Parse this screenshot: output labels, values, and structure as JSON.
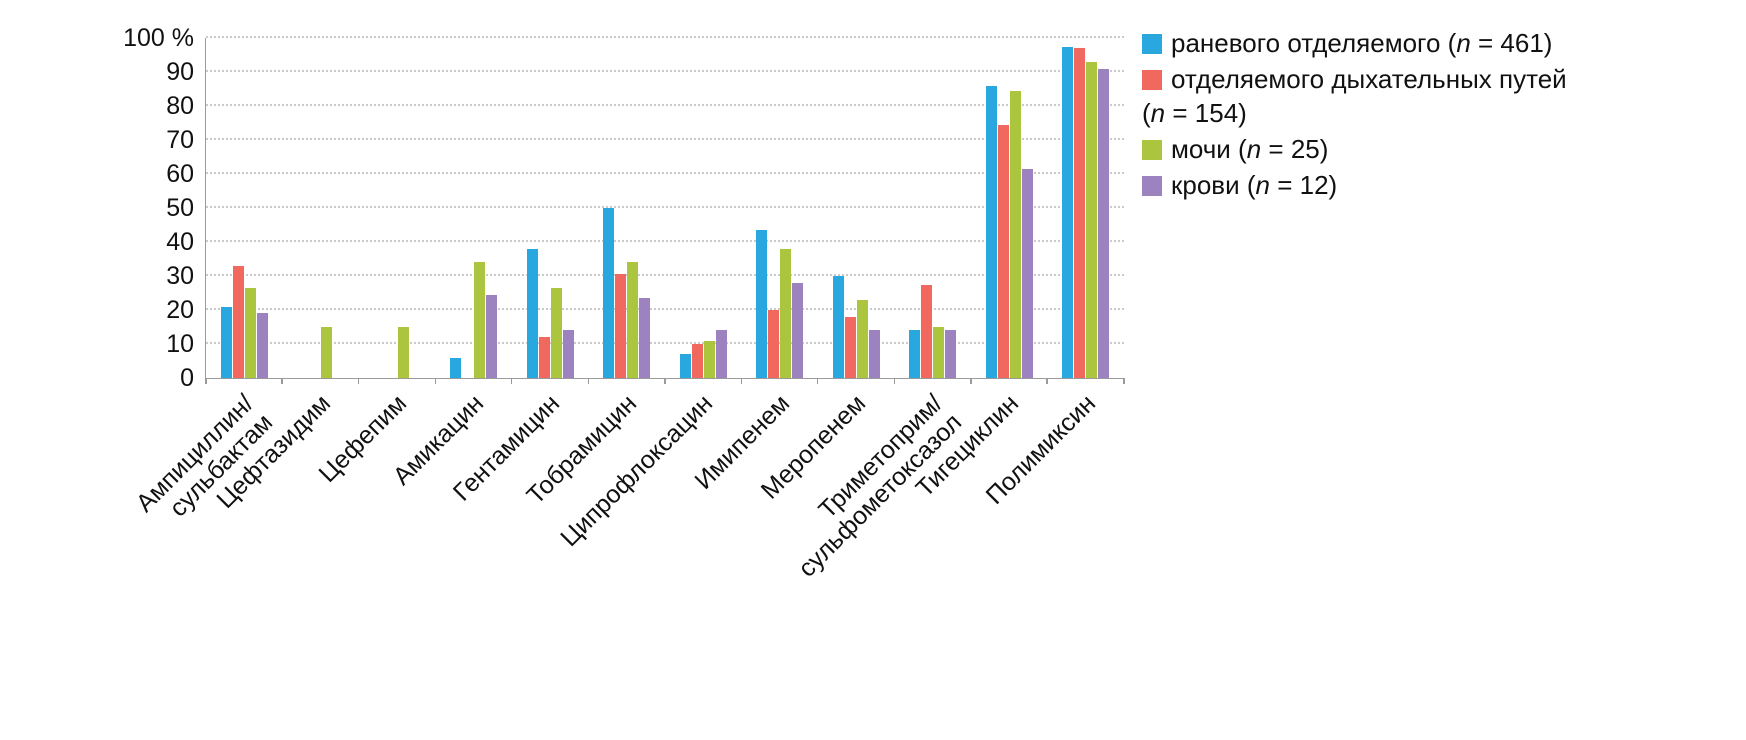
{
  "chart_data": {
    "type": "bar",
    "title": "",
    "xlabel": "",
    "ylabel": "%",
    "ylim": [
      0,
      100
    ],
    "grid": "horizontal-dotted",
    "legend_position": "top-right",
    "yticks": [
      0,
      10,
      20,
      30,
      40,
      50,
      60,
      70,
      80,
      90,
      100
    ],
    "ytick_labels": [
      "0",
      "10",
      "20",
      "30",
      "40",
      "50",
      "60",
      "70",
      "80",
      "90",
      "100 %"
    ],
    "categories": [
      "Ампициллин/\nсульбактам",
      "Цефтазидим",
      "Цефепим",
      "Амикацин",
      "Гентамицин",
      "Тобрамицин",
      "Ципрофлоксацин",
      "Имипенем",
      "Меропенем",
      "Триметоприм/\nсульфометоксазол",
      "Тигециклин",
      "Полимиксин"
    ],
    "series": [
      {
        "name": "раневого отделяемого (n = 461)",
        "legend_lines": [
          "раневого отделяемого (n = 461)"
        ],
        "color": "#29A8DF",
        "values": [
          21,
          0,
          0,
          6,
          38,
          50,
          7,
          43.5,
          30,
          14,
          86,
          97.5
        ]
      },
      {
        "name": "отделяемого дыхательных путей (n = 154)",
        "legend_lines": [
          "отделяемого дыхательных путей",
          "(n = 154)"
        ],
        "color": "#F0685E",
        "values": [
          33,
          0,
          0,
          0,
          12,
          30.5,
          10,
          20,
          18,
          27.5,
          74.5,
          97
        ]
      },
      {
        "name": "мочи (n = 25)",
        "legend_lines": [
          "мочи (n = 25)"
        ],
        "color": "#ABC53E",
        "values": [
          26.5,
          15,
          15,
          34,
          26.5,
          34,
          11,
          38,
          23,
          15,
          84.5,
          93
        ]
      },
      {
        "name": "крови (n = 12)",
        "legend_lines": [
          "крови (n = 12)"
        ],
        "color": "#9C82BE",
        "values": [
          19,
          0,
          0,
          24.5,
          14,
          23.5,
          14,
          28,
          14,
          14,
          61.5,
          91
        ]
      }
    ]
  }
}
